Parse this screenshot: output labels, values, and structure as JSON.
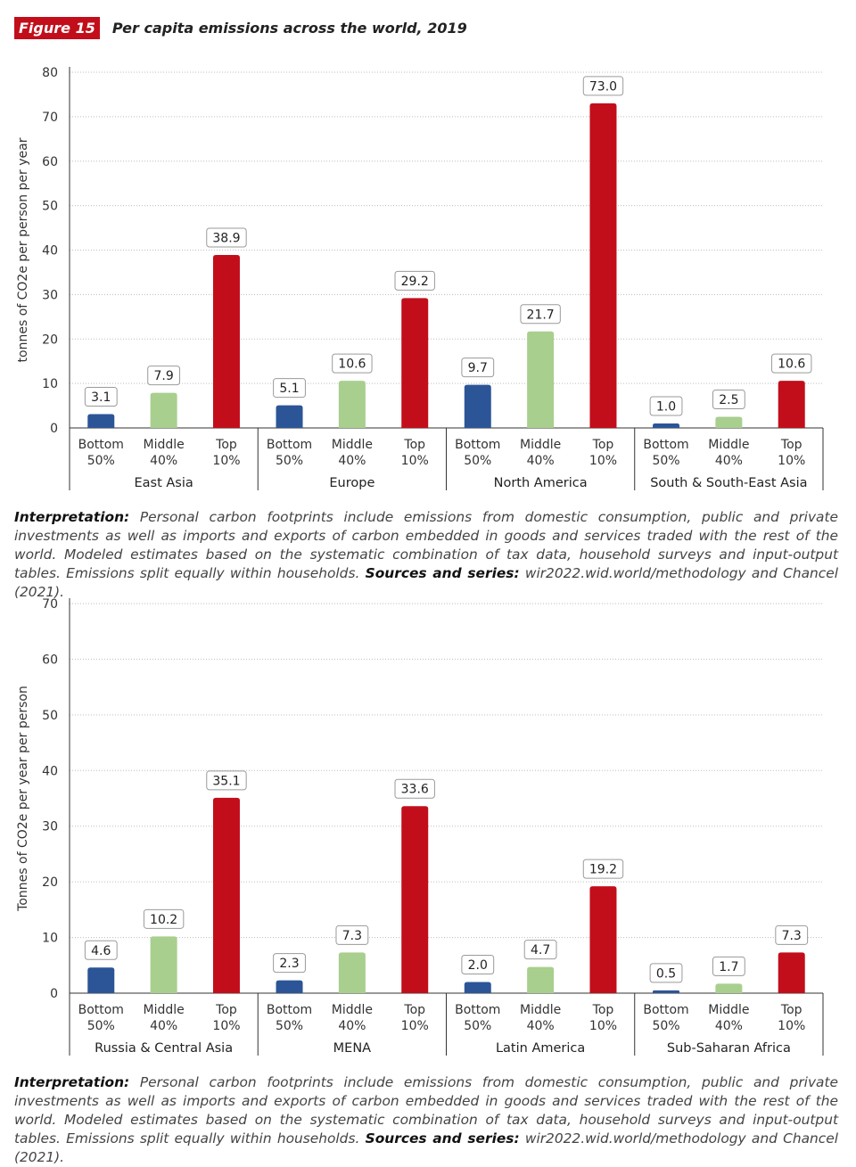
{
  "figure": {
    "badge": "Figure 15",
    "title": "Per capita emissions across the world, 2019"
  },
  "colors": {
    "bottom": "#2c5597",
    "middle": "#a8cf8e",
    "top": "#c20e1b",
    "badge": "#c20e1b"
  },
  "chart_data": [
    {
      "type": "bar",
      "ylabel": "tonnes of CO2e per person per year",
      "ylim": [
        0,
        80
      ],
      "yticks": [
        0,
        10,
        20,
        30,
        40,
        50,
        60,
        70,
        80
      ],
      "groups": [
        "East Asia",
        "Europe",
        "North America",
        "South & South-East Asia"
      ],
      "series": [
        {
          "name": "Bottom 50%",
          "label_top": "Bottom",
          "label_bottom": "50%",
          "color_key": "bottom",
          "values": [
            3.1,
            5.1,
            9.7,
            1.0
          ],
          "value_labels": [
            "3.1",
            "5.1",
            "9.7",
            "1.0"
          ]
        },
        {
          "name": "Middle 40%",
          "label_top": "Middle",
          "label_bottom": "40%",
          "color_key": "middle",
          "values": [
            7.9,
            10.6,
            21.7,
            2.5
          ],
          "value_labels": [
            "7.9",
            "10.6",
            "21.7",
            "2.5"
          ]
        },
        {
          "name": "Top 10%",
          "label_top": "Top",
          "label_bottom": "10%",
          "color_key": "top",
          "values": [
            38.9,
            29.2,
            73.0,
            10.6
          ],
          "value_labels": [
            "38.9",
            "29.2",
            "73.0",
            "10.6"
          ]
        }
      ]
    },
    {
      "type": "bar",
      "ylabel": "Tonnes of CO2e per year per person",
      "ylim": [
        0,
        70
      ],
      "yticks": [
        0,
        10,
        20,
        30,
        40,
        50,
        60,
        70
      ],
      "groups": [
        "Russia & Central Asia",
        "MENA",
        "Latin America",
        "Sub-Saharan Africa"
      ],
      "series": [
        {
          "name": "Bottom 50%",
          "label_top": "Bottom",
          "label_bottom": "50%",
          "color_key": "bottom",
          "values": [
            4.6,
            2.3,
            2.0,
            0.5
          ],
          "value_labels": [
            "4.6",
            "2.3",
            "2.0",
            "0.5"
          ]
        },
        {
          "name": "Middle 40%",
          "label_top": "Middle",
          "label_bottom": "40%",
          "color_key": "middle",
          "values": [
            10.2,
            7.3,
            4.7,
            1.7
          ],
          "value_labels": [
            "10.2",
            "7.3",
            "4.7",
            "1.7"
          ]
        },
        {
          "name": "Top 10%",
          "label_top": "Top",
          "label_bottom": "10%",
          "color_key": "top",
          "values": [
            35.1,
            33.6,
            19.2,
            7.3
          ],
          "value_labels": [
            "35.1",
            "33.6",
            "19.2",
            "7.3"
          ]
        }
      ]
    }
  ],
  "notes": [
    {
      "interp_label": "Interpretation:",
      "interp_text": " Personal carbon footprints include emissions from domestic consumption, public and private investments as well as imports and exports of carbon embedded in goods and services traded with the rest of the world. Modeled estimates based on the systematic combination of tax data, household surveys and input-output tables. Emissions split equally within households. ",
      "sources_label": "Sources and series:",
      "sources_text": " wir2022.wid.world/methodology and Chancel (2021)."
    },
    {
      "interp_label": "Interpretation:",
      "interp_text": " Personal carbon footprints include emissions from domestic consumption, public and private investments as well as imports and exports of carbon embedded in goods and services traded with the rest of the world. Modeled estimates based on the systematic combination of tax data, household surveys and input-output tables. Emissions split equally within households. ",
      "sources_label": "Sources and series:",
      "sources_text": " wir2022.wid.world/methodology and Chancel (2021)."
    }
  ]
}
